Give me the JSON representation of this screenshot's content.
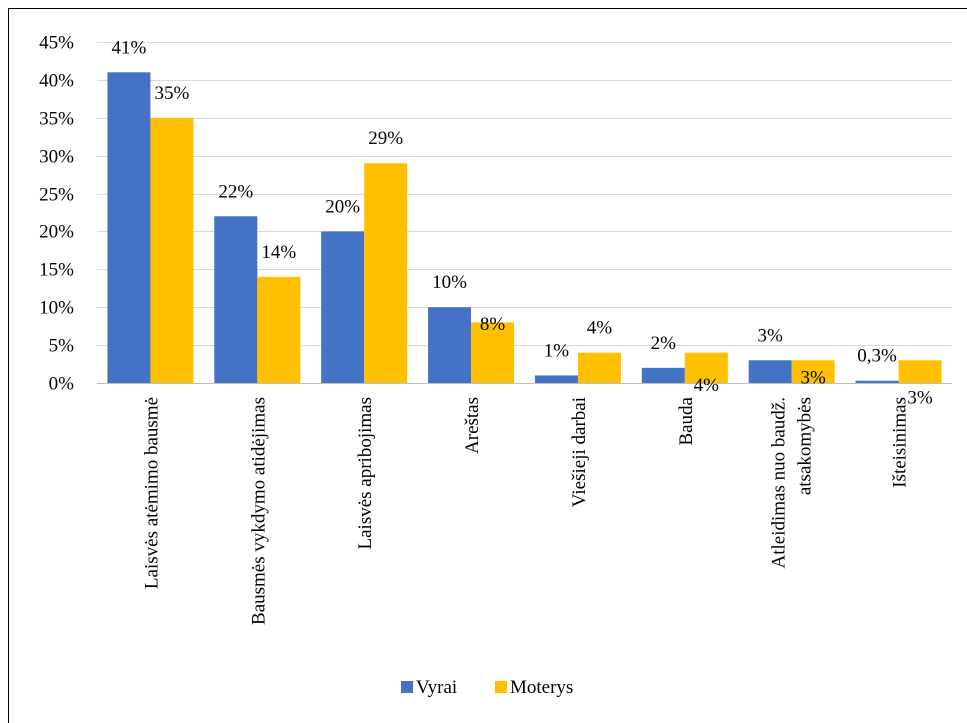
{
  "chart_data": {
    "type": "bar",
    "categories": [
      "Laisvės atėmimo bausmė",
      "Bausmės vykdymo atidėjimas",
      "Laisvės apribojimas",
      "Areštas",
      "Viešieji darbai",
      "Bauda",
      "Atleidimas nuo baudž. atsakomybės",
      "Išteisinimas"
    ],
    "category_lines": [
      [
        "Laisvės atėmimo bausmė"
      ],
      [
        "Bausmės vykdymo atidėjimas"
      ],
      [
        "Laisvės apribojimas"
      ],
      [
        "Areštas"
      ],
      [
        "Viešieji darbai"
      ],
      [
        "Bauda"
      ],
      [
        "Atleidimas nuo baudž.",
        "atsakomybės"
      ],
      [
        "Išteisinimas"
      ]
    ],
    "series": [
      {
        "name": "Vyrai",
        "color": "#4472C4",
        "values": [
          41,
          22,
          20,
          10,
          1,
          2,
          3,
          0.3
        ],
        "labels": [
          "41%",
          "22%",
          "20%",
          "10%",
          "1%",
          "2%",
          "3%",
          "0,3%"
        ]
      },
      {
        "name": "Moterys",
        "color": "#FFC000",
        "values": [
          35,
          14,
          29,
          8,
          4,
          4,
          3,
          3
        ],
        "labels": [
          "35%",
          "14%",
          "29%",
          "8%",
          "4%",
          "4%",
          "3%",
          "3%"
        ]
      }
    ],
    "y_ticks": [
      "0%",
      "5%",
      "10%",
      "15%",
      "20%",
      "25%",
      "30%",
      "35%",
      "40%",
      "45%"
    ],
    "ylim": [
      0,
      45
    ],
    "ytick_step": 5,
    "grid": true,
    "legend": "bottom"
  },
  "colors": {
    "grid": "#D9D9D9",
    "frame": "#000000"
  }
}
